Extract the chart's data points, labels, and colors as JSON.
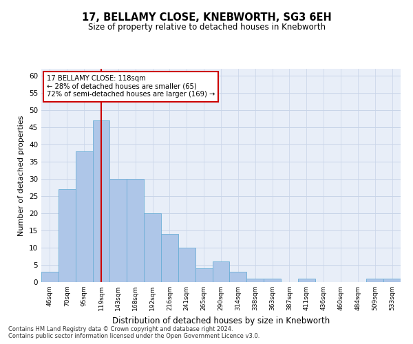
{
  "title": "17, BELLAMY CLOSE, KNEBWORTH, SG3 6EH",
  "subtitle": "Size of property relative to detached houses in Knebworth",
  "xlabel": "Distribution of detached houses by size in Knebworth",
  "ylabel": "Number of detached properties",
  "categories": [
    "46sqm",
    "70sqm",
    "95sqm",
    "119sqm",
    "143sqm",
    "168sqm",
    "192sqm",
    "216sqm",
    "241sqm",
    "265sqm",
    "290sqm",
    "314sqm",
    "338sqm",
    "363sqm",
    "387sqm",
    "411sqm",
    "436sqm",
    "460sqm",
    "484sqm",
    "509sqm",
    "533sqm"
  ],
  "values": [
    3,
    27,
    38,
    47,
    30,
    30,
    20,
    14,
    10,
    4,
    6,
    3,
    1,
    1,
    0,
    1,
    0,
    0,
    0,
    1,
    1
  ],
  "bar_color": "#aec6e8",
  "bar_edge_color": "#6baed6",
  "red_line_x": 3,
  "annotation_line1": "17 BELLAMY CLOSE: 118sqm",
  "annotation_line2": "← 28% of detached houses are smaller (65)",
  "annotation_line3": "72% of semi-detached houses are larger (169) →",
  "annotation_box_color": "#ffffff",
  "annotation_box_edge_color": "#cc0000",
  "ylim": [
    0,
    62
  ],
  "yticks": [
    0,
    5,
    10,
    15,
    20,
    25,
    30,
    35,
    40,
    45,
    50,
    55,
    60
  ],
  "grid_color": "#c8d4e8",
  "bg_color": "#e8eef8",
  "footer_line1": "Contains HM Land Registry data © Crown copyright and database right 2024.",
  "footer_line2": "Contains public sector information licensed under the Open Government Licence v3.0."
}
